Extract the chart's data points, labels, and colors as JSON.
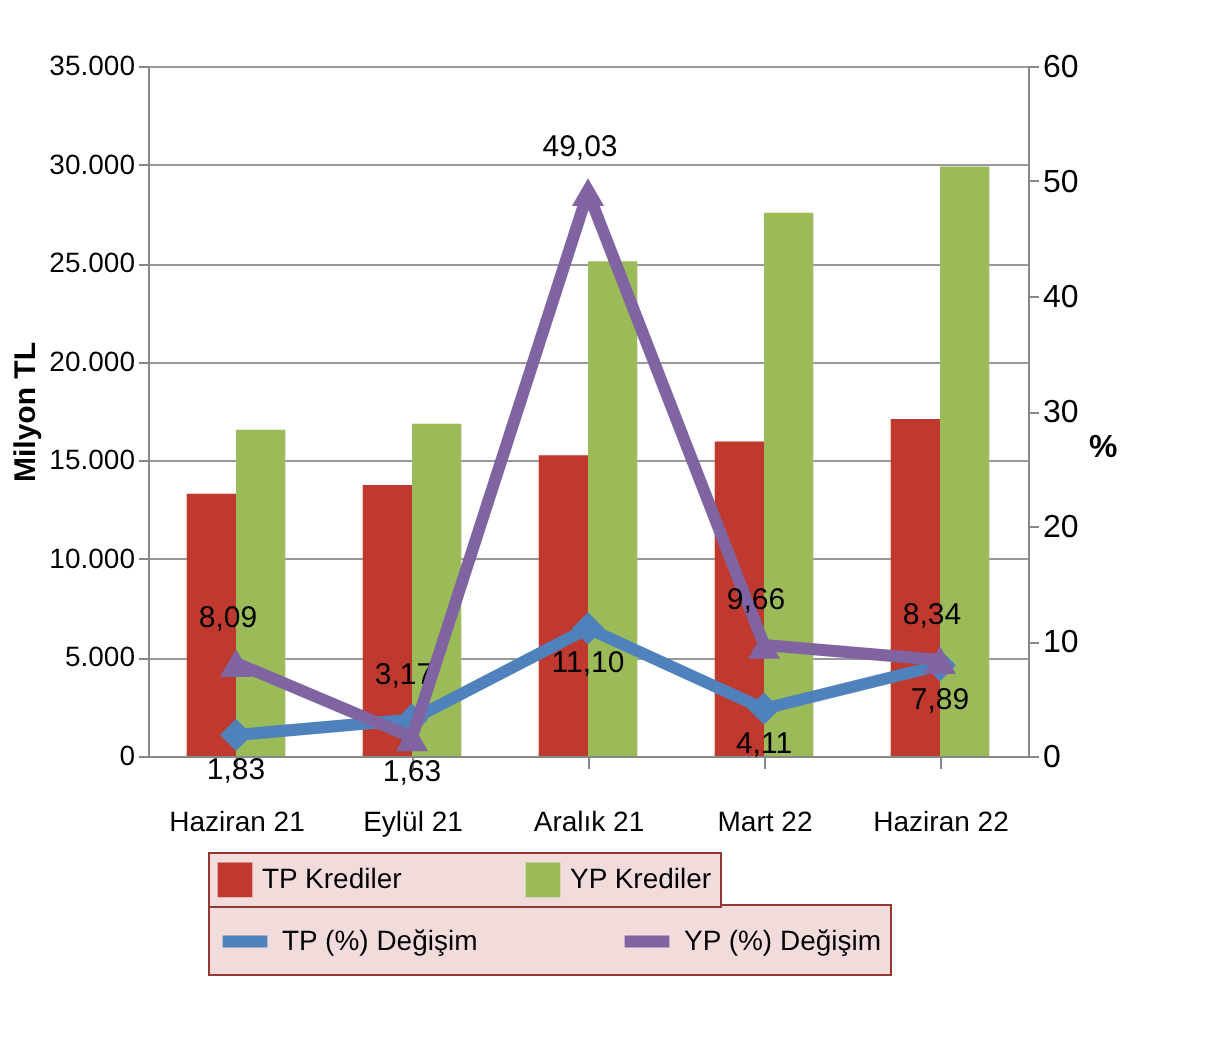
{
  "chart_data": {
    "type": "bar",
    "categories": [
      "Haziran 21",
      "Eylül 21",
      "Aralık 21",
      "Mart 22",
      "Haziran 22"
    ],
    "ylabel": "Milyon TL",
    "y2label": "%",
    "series": [
      {
        "name": "TP Krediler",
        "color": "#c0392f",
        "values": [
          13300,
          13750,
          15250,
          15950,
          17100
        ]
      },
      {
        "name": "YP Krediler",
        "color": "#9bbb59",
        "values": [
          16550,
          16850,
          25100,
          27550,
          29900
        ]
      },
      {
        "name": "TP (%) Değişim",
        "type": "line",
        "axis": "y2",
        "marker": "diamond",
        "color": "#4f81bd",
        "values": [
          1.83,
          3.17,
          11.1,
          4.11,
          7.89
        ],
        "value_labels": [
          "1,83",
          "3,17",
          "11,10",
          "4,11",
          "7,89"
        ]
      },
      {
        "name": "YP (%) Değişim",
        "type": "line",
        "axis": "y2",
        "marker": "triangle",
        "color": "#8064a2",
        "values": [
          8.09,
          1.63,
          49.03,
          9.66,
          8.34
        ],
        "value_labels": [
          "8,09",
          "1,63",
          "49,03",
          "9,66",
          "8,34"
        ]
      }
    ],
    "ylim": [
      0,
      35000
    ],
    "yticks": [
      {
        "value": 0,
        "label": "0"
      },
      {
        "value": 5000,
        "label": "5.000"
      },
      {
        "value": 10000,
        "label": "10.000"
      },
      {
        "value": 15000,
        "label": "15.000"
      },
      {
        "value": 20000,
        "label": "20.000"
      },
      {
        "value": 25000,
        "label": "25.000"
      },
      {
        "value": 30000,
        "label": "30.000"
      },
      {
        "value": 35000,
        "label": "35.000"
      }
    ],
    "y2lim": [
      0,
      60
    ],
    "y2ticks": [
      0,
      10,
      20,
      30,
      40,
      50,
      60
    ],
    "grid": "y",
    "legend": "bottom"
  }
}
